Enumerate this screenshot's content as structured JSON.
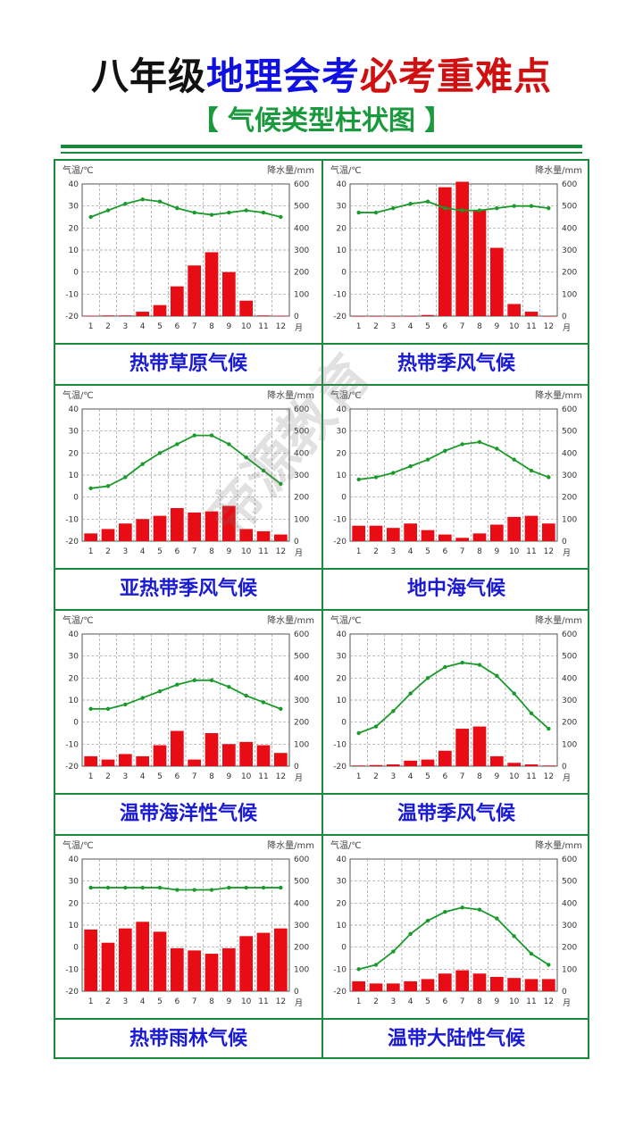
{
  "header": {
    "title_part1": "八年级",
    "title_part2": "地理会考",
    "title_part3": "必考重难点",
    "subtitle": "【 气候类型柱状图 】"
  },
  "watermark": "帝源教育",
  "colors": {
    "temp_line": "#1a9a2a",
    "precip_bar": "#e80c14",
    "border": "#1a8a3a",
    "label": "#1a1ad0"
  },
  "chart_common": {
    "ylabel_left": "气温/℃",
    "ylabel_right": "降水量/mm",
    "x_unit": "月",
    "months": [
      "1",
      "2",
      "3",
      "4",
      "5",
      "6",
      "7",
      "8",
      "9",
      "10",
      "11",
      "12"
    ],
    "temp_ticks": [
      40,
      30,
      20,
      10,
      0,
      -10,
      -20
    ],
    "precip_ticks": [
      600,
      500,
      400,
      300,
      200,
      100,
      0
    ],
    "temp_range": [
      -20,
      40
    ],
    "precip_range": [
      0,
      600
    ]
  },
  "chart_data": [
    {
      "type": "bar",
      "name": "热带草原气候",
      "temperature": [
        25,
        28,
        31,
        33,
        32,
        29,
        27,
        26,
        27,
        28,
        27,
        25
      ],
      "precipitation": [
        2,
        3,
        3,
        20,
        50,
        135,
        230,
        290,
        200,
        70,
        3,
        2
      ]
    },
    {
      "type": "bar",
      "name": "热带季风气候",
      "temperature": [
        27,
        27,
        29,
        31,
        32,
        29,
        28,
        28,
        29,
        30,
        30,
        29
      ],
      "precipitation": [
        0,
        0,
        0,
        0,
        5,
        585,
        610,
        480,
        310,
        55,
        20,
        0
      ]
    },
    {
      "type": "bar",
      "name": "亚热带季风气候",
      "temperature": [
        4,
        5,
        9,
        15,
        20,
        24,
        28,
        28,
        24,
        18,
        12,
        6
      ],
      "precipitation": [
        35,
        55,
        80,
        100,
        115,
        150,
        130,
        135,
        160,
        55,
        45,
        30
      ]
    },
    {
      "type": "bar",
      "name": "地中海气候",
      "temperature": [
        8,
        9,
        11,
        14,
        17,
        21,
        24,
        25,
        22,
        17,
        12,
        9
      ],
      "precipitation": [
        70,
        70,
        60,
        80,
        50,
        30,
        15,
        35,
        75,
        110,
        115,
        80
      ]
    },
    {
      "type": "bar",
      "name": "温带海洋性气候",
      "temperature": [
        6,
        6,
        8,
        11,
        14,
        17,
        19,
        19,
        16,
        12,
        9,
        6
      ],
      "precipitation": [
        45,
        30,
        55,
        45,
        95,
        160,
        30,
        150,
        100,
        110,
        95,
        60
      ]
    },
    {
      "type": "bar",
      "name": "温带季风气候",
      "temperature": [
        -5,
        -2,
        5,
        13,
        20,
        25,
        27,
        26,
        21,
        13,
        4,
        -3
      ],
      "precipitation": [
        3,
        5,
        8,
        25,
        30,
        70,
        170,
        180,
        45,
        15,
        8,
        3
      ]
    },
    {
      "type": "bar",
      "name": "热带雨林气候",
      "temperature": [
        27,
        27,
        27,
        27,
        27,
        26,
        26,
        26,
        27,
        27,
        27,
        27
      ],
      "precipitation": [
        280,
        220,
        285,
        315,
        270,
        195,
        185,
        170,
        195,
        250,
        265,
        285
      ]
    },
    {
      "type": "bar",
      "name": "温带大陆性气候",
      "temperature": [
        -10,
        -8,
        -2,
        6,
        12,
        16,
        18,
        17,
        13,
        5,
        -3,
        -8
      ],
      "precipitation": [
        45,
        35,
        35,
        45,
        55,
        80,
        95,
        80,
        65,
        60,
        55,
        55
      ]
    }
  ]
}
